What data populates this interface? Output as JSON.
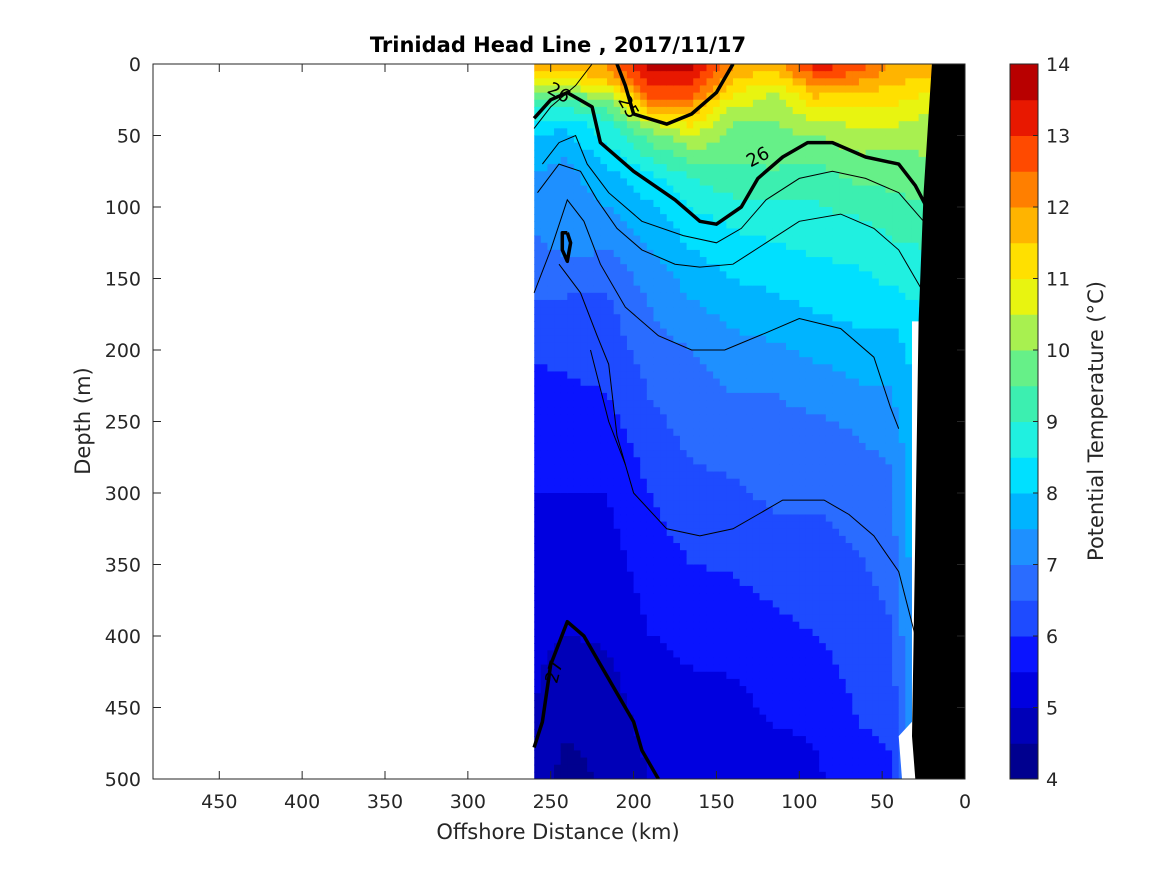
{
  "chart_data": {
    "type": "heatmap",
    "subtype": "filled-contour-section",
    "title": "Trinidad Head Line , 2017/11/17",
    "xlabel": "Offshore Distance (km)",
    "ylabel": "Depth (m)",
    "xlim": [
      490,
      0
    ],
    "ylim": [
      500,
      0
    ],
    "x_reversed": true,
    "y_reversed": true,
    "xticks": [
      450,
      400,
      350,
      300,
      250,
      200,
      150,
      100,
      50,
      0
    ],
    "yticks": [
      0,
      50,
      100,
      150,
      200,
      250,
      300,
      350,
      400,
      450,
      500
    ],
    "data_extent_x": [
      260,
      20
    ],
    "colorbar": {
      "label": "Potential Temperature (°C)",
      "range": [
        4,
        14
      ],
      "ticks": [
        4,
        5,
        6,
        7,
        8,
        9,
        10,
        11,
        12,
        13,
        14
      ],
      "levels": [
        4,
        4.5,
        5,
        5.5,
        6,
        6.5,
        7,
        7.5,
        8,
        8.5,
        9,
        9.5,
        10,
        10.5,
        11,
        11.5,
        12,
        12.5,
        13,
        13.5,
        14
      ],
      "colors": [
        "#00008f",
        "#0000b8",
        "#0000e0",
        "#0a14ff",
        "#1e4bff",
        "#2a6cff",
        "#1e90ff",
        "#00b4ff",
        "#00e0ff",
        "#20f0e0",
        "#3cefb0",
        "#66f088",
        "#a8f050",
        "#e8f410",
        "#ffe000",
        "#ffb400",
        "#ff7f00",
        "#ff4a00",
        "#e81800",
        "#b80000"
      ]
    },
    "profiles": [
      {
        "x": 260,
        "t": [
          [
            0,
            12
          ],
          [
            20,
            10
          ],
          [
            40,
            8.3
          ],
          [
            80,
            7.4
          ],
          [
            120,
            7
          ],
          [
            160,
            6.7
          ],
          [
            180,
            6.2
          ],
          [
            250,
            5.7
          ],
          [
            350,
            5.3
          ],
          [
            450,
            5
          ],
          [
            500,
            4.7
          ]
        ]
      },
      {
        "x": 240,
        "t": [
          [
            0,
            12
          ],
          [
            10,
            11
          ],
          [
            25,
            9.5
          ],
          [
            45,
            8
          ],
          [
            70,
            7.4
          ],
          [
            120,
            7.2
          ],
          [
            150,
            6.8
          ],
          [
            170,
            6.3
          ],
          [
            250,
            5.8
          ],
          [
            330,
            5.3
          ],
          [
            400,
            5
          ],
          [
            430,
            4.7
          ],
          [
            470,
            4.5
          ],
          [
            500,
            4.3
          ]
        ]
      },
      {
        "x": 215,
        "t": [
          [
            0,
            12
          ],
          [
            10,
            11.8
          ],
          [
            25,
            10
          ],
          [
            40,
            9
          ],
          [
            80,
            7.8
          ],
          [
            120,
            7.2
          ],
          [
            160,
            6.5
          ],
          [
            230,
            6
          ],
          [
            280,
            5.6
          ],
          [
            350,
            5.3
          ],
          [
            430,
            4.9
          ],
          [
            500,
            4.6
          ]
        ]
      },
      {
        "x": 190,
        "t": [
          [
            0,
            13.6
          ],
          [
            15,
            13
          ],
          [
            30,
            12
          ],
          [
            45,
            10
          ],
          [
            80,
            8.3
          ],
          [
            120,
            7.6
          ],
          [
            160,
            7.1
          ],
          [
            220,
            6.6
          ],
          [
            300,
            6
          ],
          [
            380,
            5.6
          ],
          [
            450,
            5.2
          ],
          [
            500,
            5
          ]
        ]
      },
      {
        "x": 165,
        "t": [
          [
            0,
            13.6
          ],
          [
            15,
            13
          ],
          [
            30,
            12
          ],
          [
            50,
            10.5
          ],
          [
            80,
            9
          ],
          [
            110,
            8.3
          ],
          [
            150,
            7.7
          ],
          [
            200,
            7
          ],
          [
            250,
            6.7
          ],
          [
            320,
            6.2
          ],
          [
            380,
            5.8
          ],
          [
            450,
            5.3
          ],
          [
            500,
            5
          ]
        ]
      },
      {
        "x": 140,
        "t": [
          [
            0,
            12
          ],
          [
            20,
            11
          ],
          [
            40,
            10
          ],
          [
            80,
            9.3
          ],
          [
            110,
            8.6
          ],
          [
            150,
            8
          ],
          [
            200,
            7.3
          ],
          [
            250,
            6.8
          ],
          [
            330,
            6.2
          ],
          [
            400,
            5.7
          ],
          [
            470,
            5.2
          ],
          [
            500,
            5
          ]
        ]
      },
      {
        "x": 115,
        "t": [
          [
            0,
            11.8
          ],
          [
            20,
            10.5
          ],
          [
            40,
            10
          ],
          [
            80,
            9.4
          ],
          [
            110,
            8.7
          ],
          [
            140,
            8.3
          ],
          [
            180,
            7.7
          ],
          [
            230,
            7
          ],
          [
            300,
            6.6
          ],
          [
            380,
            6
          ],
          [
            450,
            5.6
          ],
          [
            500,
            5.2
          ]
        ]
      },
      {
        "x": 90,
        "t": [
          [
            0,
            13.4
          ],
          [
            15,
            12
          ],
          [
            30,
            11
          ],
          [
            50,
            10
          ],
          [
            80,
            9.2
          ],
          [
            120,
            8.7
          ],
          [
            160,
            8.2
          ],
          [
            200,
            7.6
          ],
          [
            260,
            6.8
          ],
          [
            330,
            6.4
          ],
          [
            400,
            6
          ],
          [
            460,
            5.6
          ],
          [
            500,
            5.4
          ]
        ]
      },
      {
        "x": 65,
        "t": [
          [
            0,
            13
          ],
          [
            15,
            11.8
          ],
          [
            30,
            11
          ],
          [
            50,
            10.3
          ],
          [
            80,
            9.6
          ],
          [
            120,
            8.7
          ],
          [
            160,
            8.3
          ],
          [
            200,
            7.8
          ],
          [
            260,
            7
          ],
          [
            320,
            6.6
          ],
          [
            400,
            6.2
          ],
          [
            460,
            6
          ],
          [
            500,
            5.8
          ]
        ]
      },
      {
        "x": 45,
        "t": [
          [
            0,
            12
          ],
          [
            15,
            11.5
          ],
          [
            30,
            11
          ],
          [
            60,
            10
          ],
          [
            100,
            9.3
          ],
          [
            150,
            8.6
          ],
          [
            200,
            7.7
          ],
          [
            280,
            7
          ],
          [
            350,
            6.7
          ],
          [
            420,
            6.3
          ],
          [
            460,
            6.1
          ],
          [
            480,
            6
          ]
        ]
      },
      {
        "x": 20,
        "t": [
          [
            0,
            12
          ],
          [
            20,
            11
          ],
          [
            40,
            10.3
          ],
          [
            80,
            9.8
          ],
          [
            130,
            9
          ],
          [
            180,
            8.5
          ]
        ]
      }
    ],
    "density_contours": [
      {
        "level": 25,
        "label": "25",
        "points": [
          [
            210,
            0
          ],
          [
            205,
            15
          ],
          [
            200,
            35
          ],
          [
            180,
            42
          ],
          [
            165,
            35
          ],
          [
            150,
            20
          ],
          [
            140,
            0
          ]
        ]
      },
      {
        "level": 26,
        "label": "26",
        "points": [
          [
            260,
            38
          ],
          [
            250,
            25
          ],
          [
            240,
            20
          ],
          [
            225,
            30
          ],
          [
            220,
            55
          ],
          [
            200,
            75
          ],
          [
            175,
            95
          ],
          [
            160,
            110
          ],
          [
            150,
            112
          ],
          [
            135,
            100
          ],
          [
            125,
            80
          ],
          [
            110,
            65
          ],
          [
            95,
            55
          ],
          [
            80,
            55
          ],
          [
            60,
            65
          ],
          [
            40,
            70
          ],
          [
            30,
            85
          ],
          [
            20,
            107
          ]
        ]
      },
      {
        "level": 27,
        "label": "27",
        "points": [
          [
            260,
            478
          ],
          [
            255,
            460
          ],
          [
            250,
            420
          ],
          [
            240,
            390
          ],
          [
            230,
            400
          ],
          [
            220,
            420
          ],
          [
            210,
            440
          ],
          [
            200,
            460
          ],
          [
            195,
            480
          ],
          [
            185,
            500
          ]
        ]
      },
      {
        "level": 26.2,
        "label": "",
        "points": [
          [
            240,
            118
          ],
          [
            238,
            125
          ],
          [
            240,
            138
          ],
          [
            243,
            130
          ],
          [
            243,
            118
          ],
          [
            240,
            118
          ]
        ]
      }
    ],
    "thin_contours": [
      [
        [
          260,
          45
        ],
        [
          250,
          30
        ],
        [
          235,
          15
        ],
        [
          225,
          0
        ]
      ],
      [
        [
          255,
          70
        ],
        [
          245,
          55
        ],
        [
          235,
          50
        ],
        [
          228,
          70
        ],
        [
          215,
          90
        ],
        [
          195,
          110
        ],
        [
          170,
          120
        ],
        [
          150,
          125
        ],
        [
          135,
          115
        ],
        [
          120,
          95
        ],
        [
          100,
          80
        ],
        [
          80,
          75
        ],
        [
          60,
          80
        ],
        [
          40,
          90
        ],
        [
          25,
          110
        ]
      ],
      [
        [
          258,
          90
        ],
        [
          245,
          70
        ],
        [
          232,
          75
        ],
        [
          222,
          95
        ],
        [
          210,
          115
        ],
        [
          195,
          130
        ],
        [
          175,
          140
        ],
        [
          160,
          142
        ],
        [
          140,
          140
        ],
        [
          120,
          125
        ],
        [
          100,
          110
        ],
        [
          75,
          105
        ],
        [
          55,
          115
        ],
        [
          40,
          130
        ],
        [
          25,
          160
        ]
      ],
      [
        [
          260,
          160
        ],
        [
          250,
          130
        ],
        [
          240,
          95
        ],
        [
          230,
          110
        ],
        [
          220,
          140
        ],
        [
          205,
          170
        ],
        [
          185,
          190
        ],
        [
          165,
          200
        ],
        [
          145,
          200
        ],
        [
          120,
          188
        ],
        [
          100,
          178
        ],
        [
          75,
          185
        ],
        [
          55,
          205
        ],
        [
          45,
          240
        ],
        [
          40,
          255
        ]
      ],
      [
        [
          245,
          140
        ],
        [
          232,
          160
        ],
        [
          222,
          190
        ],
        [
          215,
          210
        ],
        [
          210,
          260
        ],
        [
          200,
          300
        ],
        [
          180,
          325
        ],
        [
          160,
          330
        ],
        [
          140,
          325
        ],
        [
          125,
          315
        ],
        [
          110,
          305
        ],
        [
          85,
          305
        ],
        [
          70,
          315
        ],
        [
          55,
          330
        ],
        [
          40,
          355
        ],
        [
          30,
          400
        ]
      ],
      [
        [
          226,
          200
        ],
        [
          215,
          250
        ],
        [
          205,
          280
        ]
      ]
    ],
    "landmask": [
      [
        0,
        0
      ],
      [
        20,
        0
      ],
      [
        25,
        90
      ],
      [
        28,
        180
      ],
      [
        30,
        330
      ],
      [
        32,
        470
      ],
      [
        30,
        500
      ],
      [
        0,
        500
      ]
    ],
    "nodata_gaps": [
      [
        [
          32,
          180
        ],
        [
          20,
          180
        ],
        [
          20,
          500
        ],
        [
          38,
          500
        ],
        [
          40,
          470
        ],
        [
          32,
          460
        ]
      ]
    ]
  }
}
